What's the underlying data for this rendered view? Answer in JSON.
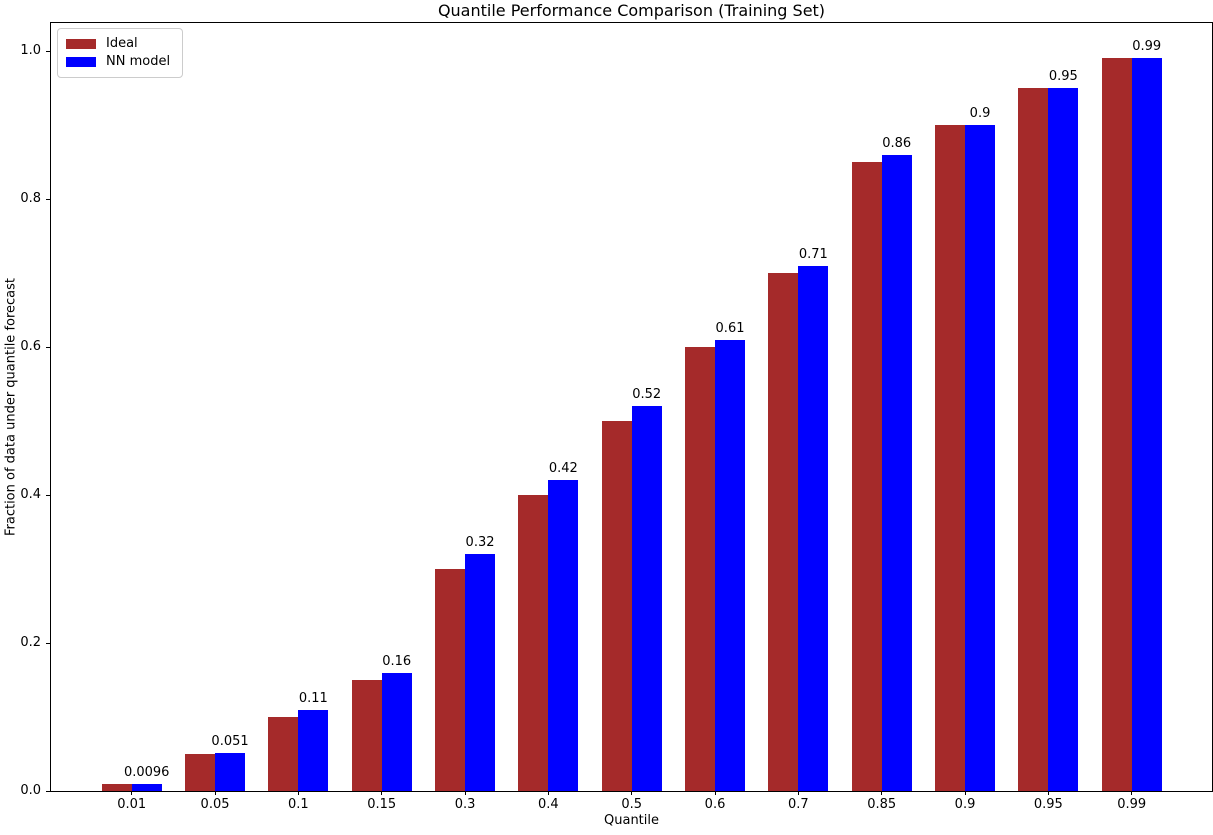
{
  "chart_data": {
    "type": "bar",
    "title": "Quantile Performance Comparison (Training Set)",
    "xlabel": "Quantile",
    "ylabel": "Fraction of data under quantile forecast",
    "categories": [
      "0.01",
      "0.05",
      "0.1",
      "0.15",
      "0.3",
      "0.4",
      "0.5",
      "0.6",
      "0.7",
      "0.85",
      "0.9",
      "0.95",
      "0.99"
    ],
    "series": [
      {
        "name": "Ideal",
        "color": "#A52A2A",
        "values": [
          0.01,
          0.05,
          0.1,
          0.15,
          0.3,
          0.4,
          0.5,
          0.6,
          0.7,
          0.85,
          0.9,
          0.95,
          0.99
        ]
      },
      {
        "name": "NN model",
        "color": "#0000FF",
        "values": [
          0.0096,
          0.051,
          0.11,
          0.16,
          0.32,
          0.42,
          0.52,
          0.61,
          0.71,
          0.86,
          0.9,
          0.95,
          0.99
        ],
        "labels": [
          "0.0096",
          "0.051",
          "0.11",
          "0.16",
          "0.32",
          "0.42",
          "0.52",
          "0.61",
          "0.71",
          "0.86",
          "0.9",
          "0.95",
          "0.99"
        ]
      }
    ],
    "yticks": [
      "0.0",
      "0.2",
      "0.4",
      "0.6",
      "0.8",
      "1.0"
    ],
    "ylim": [
      0,
      1.038
    ],
    "grid": false,
    "legend_position": "upper left",
    "value_labels_on": "NN model"
  }
}
